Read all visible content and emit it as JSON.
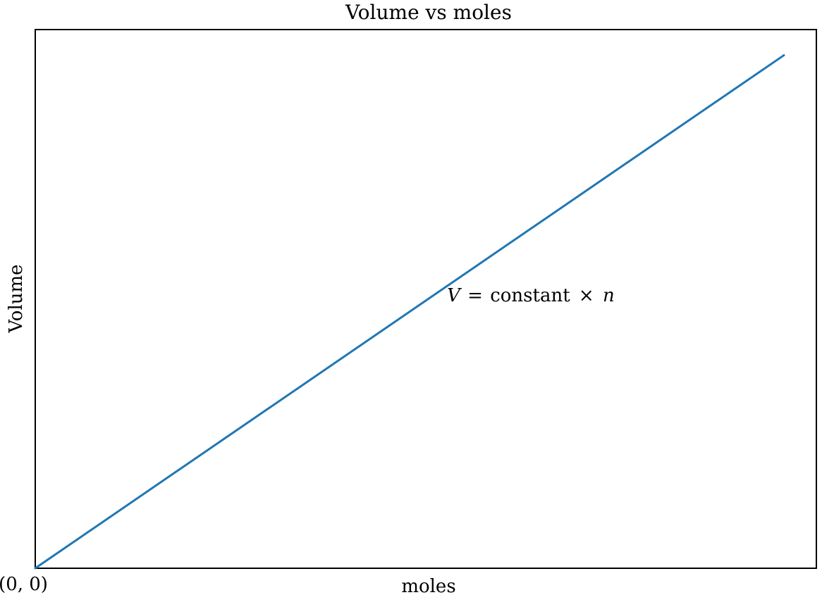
{
  "chart_data": {
    "type": "line",
    "title": "Volume vs moles",
    "xlabel": "moles",
    "ylabel": "Volume",
    "origin_label": "(0, 0)",
    "annotation": {
      "symbol": "V",
      "equals": "=",
      "text": "constant",
      "times": "×",
      "variable": "n",
      "x": 0.55,
      "y": 0.52
    },
    "xlim": [
      0,
      1
    ],
    "ylim": [
      0,
      1.05
    ],
    "grid": false,
    "series": [
      {
        "x": [
          0,
          1
        ],
        "y": [
          0,
          1
        ]
      }
    ],
    "line_color": "#1f77b4"
  }
}
